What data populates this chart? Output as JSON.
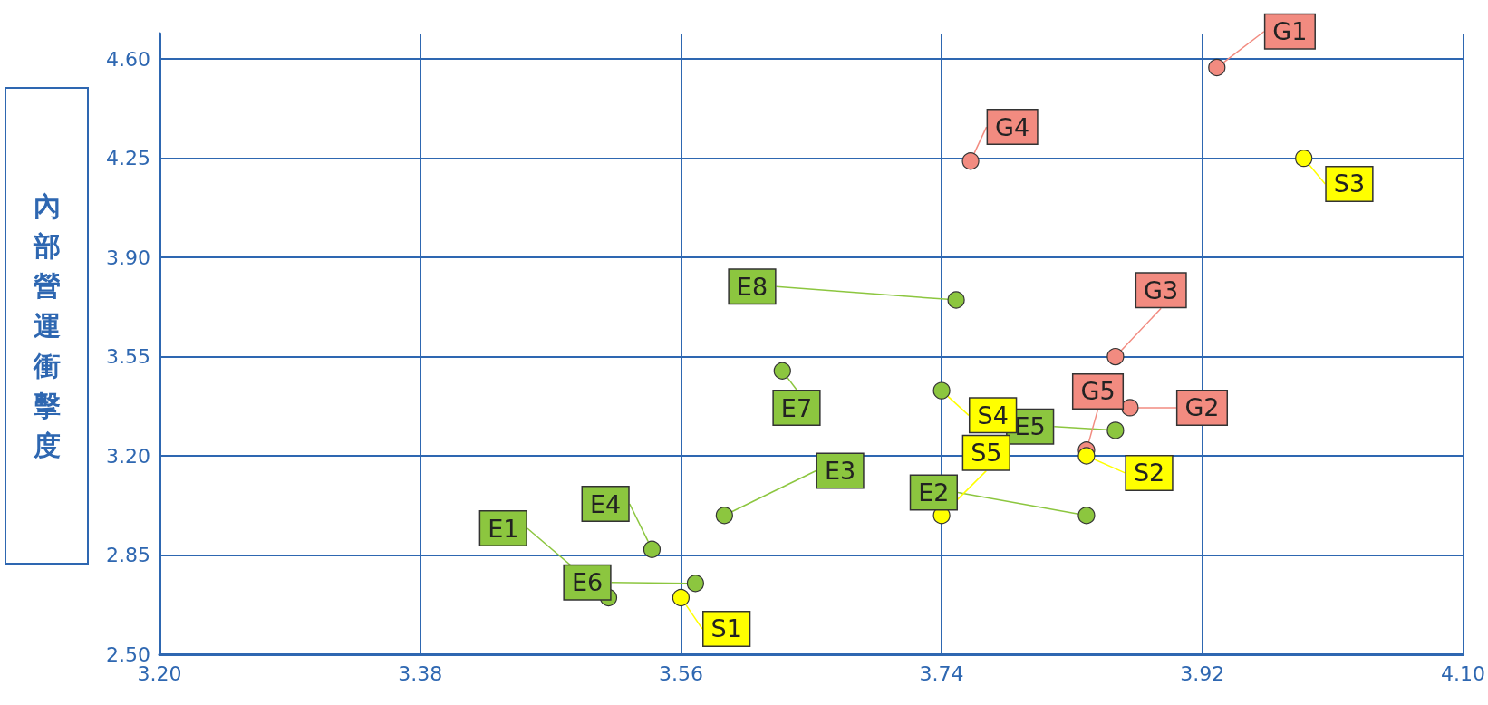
{
  "chart_data": {
    "type": "scatter",
    "ylabel": "內部營運衝擊度",
    "xlim": [
      3.2,
      4.1
    ],
    "xticks": [
      {
        "value": 3.2,
        "label": "3.20"
      },
      3.38,
      3.56,
      3.74,
      3.92,
      {
        "value": 4.1,
        "label": "4.10"
      }
    ],
    "ylim": [
      2.5,
      4.69
    ],
    "yticks": [
      {
        "value": 2.5,
        "label": "2.50"
      },
      2.85,
      {
        "value": 3.2,
        "label": "3.20"
      },
      3.55,
      {
        "value": 3.9,
        "label": "3.90"
      },
      4.25,
      {
        "value": 4.6,
        "label": "4.60"
      }
    ],
    "grid": true,
    "marker": "circle",
    "series": [
      {
        "color": "#8cc63f",
        "x": [
          3.51,
          3.84,
          3.59,
          3.54,
          3.86,
          3.57,
          3.63,
          3.75
        ],
        "values": [
          2.7,
          2.99,
          2.99,
          2.87,
          3.29,
          2.75,
          3.5,
          3.75
        ],
        "value_labels": [
          "E1",
          "E2",
          "E3",
          "E4",
          "E5",
          "E6",
          "E7",
          "E8"
        ]
      },
      {
        "color": "#f28b80",
        "x": [
          3.93,
          3.87,
          3.86,
          3.76,
          3.84
        ],
        "values": [
          4.57,
          3.37,
          3.55,
          4.24,
          3.22
        ],
        "value_labels": [
          "G1",
          "G2",
          "G3",
          "G4",
          "G5"
        ]
      },
      {
        "color": "#ffff00",
        "colors": [
          "#ffff00",
          "#ffff00",
          "#ffff00",
          "#8cc63f",
          "#ffff00"
        ],
        "x": [
          3.56,
          3.84,
          3.99,
          3.74,
          3.74
        ],
        "values": [
          2.7,
          3.2,
          4.25,
          3.43,
          2.99
        ],
        "value_labels": [
          "S1",
          "S2",
          "S3",
          "S4",
          "S5"
        ]
      }
    ]
  }
}
